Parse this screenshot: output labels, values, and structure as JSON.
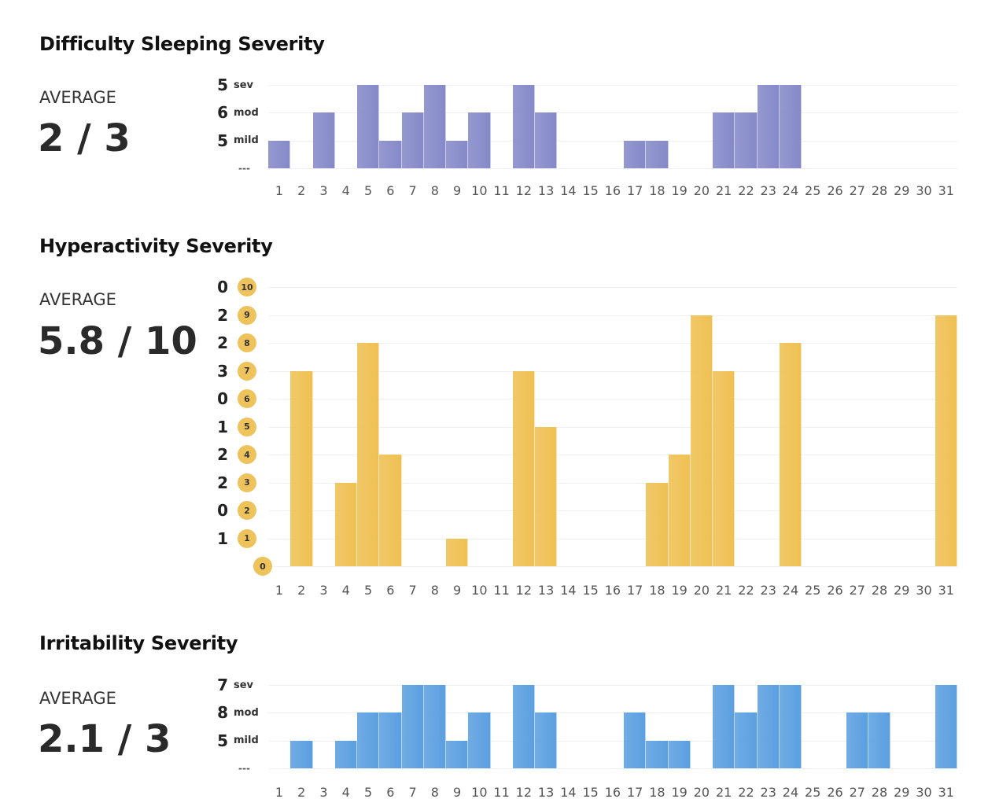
{
  "charts": [
    {
      "title": "Difficulty Sleeping Severity",
      "average_label": "AVERAGE",
      "average": "2 / 3",
      "color": "#8589c8",
      "chart_data": {
        "type": "bar",
        "categories": [
          1,
          2,
          3,
          4,
          5,
          6,
          7,
          8,
          9,
          10,
          11,
          12,
          13,
          14,
          15,
          16,
          17,
          18,
          19,
          20,
          21,
          22,
          23,
          24,
          25,
          26,
          27,
          28,
          29,
          30,
          31
        ],
        "values": [
          1,
          0,
          2,
          0,
          3,
          1,
          2,
          3,
          1,
          2,
          0,
          3,
          2,
          0,
          0,
          0,
          1,
          1,
          0,
          0,
          2,
          2,
          3,
          3,
          0,
          0,
          0,
          0,
          0,
          0,
          0
        ],
        "ylim": [
          0,
          3
        ],
        "y_levels": [
          {
            "level": 3,
            "label": "sev",
            "count": "5"
          },
          {
            "level": 2,
            "label": "mod",
            "count": "6"
          },
          {
            "level": 1,
            "label": "mild",
            "count": "5"
          },
          {
            "level": 0,
            "label": "---",
            "count": ""
          }
        ]
      }
    },
    {
      "title": "Hyperactivity Severity",
      "average_label": "AVERAGE",
      "average": "5.8 / 10",
      "color": "#efc052",
      "chart_data": {
        "type": "bar",
        "categories": [
          1,
          2,
          3,
          4,
          5,
          6,
          7,
          8,
          9,
          10,
          11,
          12,
          13,
          14,
          15,
          16,
          17,
          18,
          19,
          20,
          21,
          22,
          23,
          24,
          25,
          26,
          27,
          28,
          29,
          30,
          31
        ],
        "values": [
          0,
          7,
          0,
          3,
          8,
          4,
          0,
          0,
          1,
          0,
          0,
          7,
          5,
          0,
          0,
          0,
          0,
          3,
          4,
          9,
          7,
          0,
          0,
          8,
          0,
          0,
          0,
          0,
          0,
          0,
          9
        ],
        "ylim": [
          0,
          10
        ],
        "y_levels": [
          {
            "level": 10,
            "label": "10",
            "count": "0"
          },
          {
            "level": 9,
            "label": "9",
            "count": "2"
          },
          {
            "level": 8,
            "label": "8",
            "count": "2"
          },
          {
            "level": 7,
            "label": "7",
            "count": "3"
          },
          {
            "level": 6,
            "label": "6",
            "count": "0"
          },
          {
            "level": 5,
            "label": "5",
            "count": "1"
          },
          {
            "level": 4,
            "label": "4",
            "count": "2"
          },
          {
            "level": 3,
            "label": "3",
            "count": "2"
          },
          {
            "level": 2,
            "label": "2",
            "count": "0"
          },
          {
            "level": 1,
            "label": "1",
            "count": "1"
          },
          {
            "level": 0,
            "label": "0",
            "count": ""
          }
        ]
      }
    },
    {
      "title": "Irritability Severity",
      "average_label": "AVERAGE",
      "average": "2.1 / 3",
      "color": "#5b9fe0",
      "chart_data": {
        "type": "bar",
        "categories": [
          1,
          2,
          3,
          4,
          5,
          6,
          7,
          8,
          9,
          10,
          11,
          12,
          13,
          14,
          15,
          16,
          17,
          18,
          19,
          20,
          21,
          22,
          23,
          24,
          25,
          26,
          27,
          28,
          29,
          30,
          31
        ],
        "values": [
          0,
          1,
          0,
          1,
          2,
          2,
          3,
          3,
          1,
          2,
          0,
          3,
          2,
          0,
          0,
          0,
          2,
          1,
          1,
          0,
          3,
          2,
          3,
          3,
          0,
          0,
          2,
          2,
          0,
          0,
          3
        ],
        "ylim": [
          0,
          3
        ],
        "y_levels": [
          {
            "level": 3,
            "label": "sev",
            "count": "7"
          },
          {
            "level": 2,
            "label": "mod",
            "count": "8"
          },
          {
            "level": 1,
            "label": "mild",
            "count": "5"
          },
          {
            "level": 0,
            "label": "---",
            "count": ""
          }
        ]
      }
    }
  ]
}
